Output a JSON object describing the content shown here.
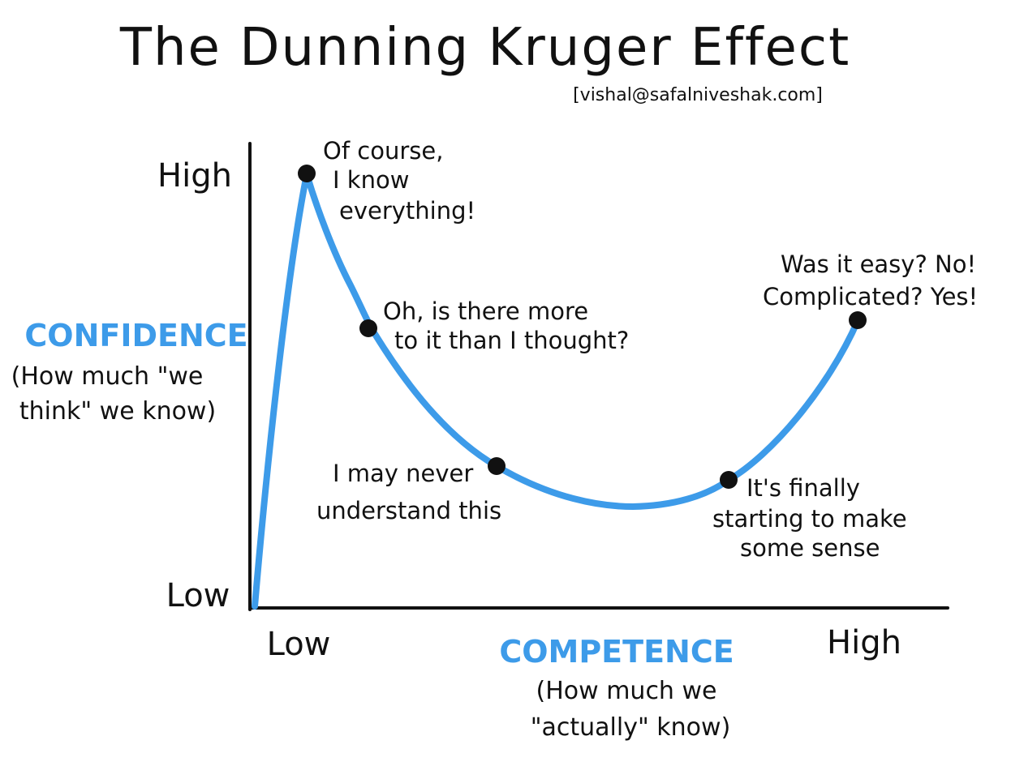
{
  "title": "The Dunning Kruger Effect",
  "credit": "[vishal@safalniveshak.com]",
  "colors": {
    "curve": "#3d9be9",
    "axis_label": "#3d9be9",
    "ink": "#111111"
  },
  "y_axis": {
    "label": "CONFIDENCE",
    "sublabel_lines": [
      "(How much \"we",
      "think\" we know)"
    ],
    "high": "High",
    "low": "Low"
  },
  "x_axis": {
    "label": "COMPETENCE",
    "sublabel_lines": [
      "(How much we",
      "\"actually\" know)"
    ],
    "low": "Low",
    "high": "High"
  },
  "points": [
    {
      "lines": [
        "Of course,",
        "I know",
        "everything!"
      ]
    },
    {
      "lines": [
        "Oh, is there more",
        "to it than I thought?"
      ]
    },
    {
      "lines": [
        "I may never",
        "understand this"
      ]
    },
    {
      "lines": [
        "It's finally",
        "starting to make",
        "some sense"
      ]
    },
    {
      "lines": [
        "Was it easy? No!",
        "Complicated? Yes!"
      ]
    }
  ]
}
